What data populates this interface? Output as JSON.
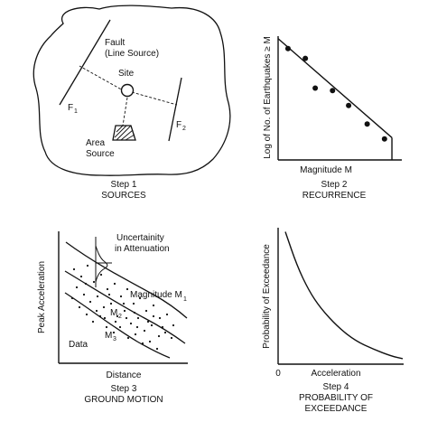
{
  "step1": {
    "fault_label": "Fault",
    "fault_sublabel": "(Line Source)",
    "site_label": "Site",
    "f1_letter": "F",
    "f1_sub": "1",
    "f2_letter": "F",
    "f2_sub": "2",
    "area_label": "Area",
    "area_label2": "Source",
    "caption_step": "Step 1",
    "caption_title": "SOURCES"
  },
  "step2": {
    "ylabel": "Log of No. of Earthquakes ≥ M",
    "xlabel": "Magnitude M",
    "caption_step": "Step 2",
    "caption_title": "RECURRENCE"
  },
  "step3": {
    "ylabel": "Peak Acceleration",
    "xlabel": "Distance",
    "uncertainty_label": "Uncertainity",
    "uncertainty_label2": "in Attenuation",
    "m1_label": "Magnitude M",
    "m1_sub": "1",
    "m2_label": "M",
    "m2_sub": "2",
    "m3_label": "M",
    "m3_sub": "3",
    "data_label": "Data",
    "caption_step": "Step 3",
    "caption_title": "GROUND MOTION"
  },
  "step4": {
    "ylabel": "Probability of Exceedance",
    "xlabel": "Acceleration",
    "origin_label": "0",
    "caption_step": "Step 4",
    "caption_title": "PROBABILITY OF",
    "caption_title2": "EXCEEDANCE"
  },
  "chart_data": [
    {
      "type": "scatter",
      "title": "RECURRENCE",
      "xlabel": "Magnitude M",
      "ylabel": "Log of No. of Earthquakes ≥ M",
      "points": [
        [
          0.08,
          0.9
        ],
        [
          0.22,
          0.82
        ],
        [
          0.3,
          0.58
        ],
        [
          0.44,
          0.56
        ],
        [
          0.57,
          0.44
        ],
        [
          0.72,
          0.29
        ],
        [
          0.86,
          0.17
        ]
      ],
      "fit_line": [
        [
          0.0,
          0.98
        ],
        [
          0.92,
          0.18
        ]
      ],
      "max_magnitude_cutoff": 0.92
    },
    {
      "type": "line",
      "title": "PROBABILITY OF EXCEEDANCE",
      "xlabel": "Acceleration",
      "ylabel": "Probability of Exceedance",
      "x": [
        0.0,
        0.1,
        0.2,
        0.3,
        0.45,
        0.6,
        0.75,
        0.9,
        1.0
      ],
      "y": [
        0.97,
        0.72,
        0.54,
        0.41,
        0.27,
        0.17,
        0.11,
        0.06,
        0.04
      ]
    }
  ]
}
